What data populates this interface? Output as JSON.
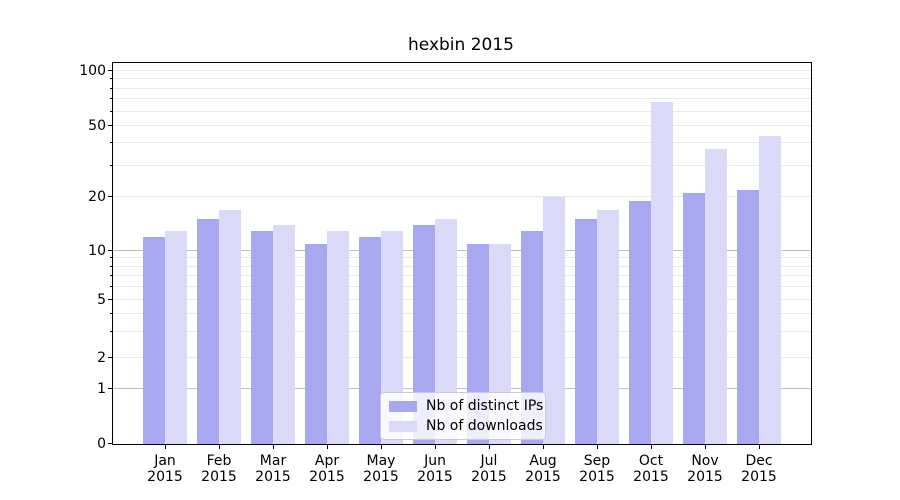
{
  "title": "hexbin 2015",
  "legend": {
    "items": [
      {
        "label": "Nb of distinct IPs",
        "color": "#a8a8f0"
      },
      {
        "label": "Nb of downloads",
        "color": "#dadaf8"
      }
    ]
  },
  "y_axis": {
    "ticks": [
      {
        "value": 100,
        "label": "100"
      },
      {
        "value": 50,
        "label": "50"
      },
      {
        "value": 20,
        "label": "20"
      },
      {
        "value": 10,
        "label": "10"
      },
      {
        "value": 5,
        "label": "5"
      },
      {
        "value": 2,
        "label": "2"
      },
      {
        "value": 1,
        "label": "1"
      },
      {
        "value": 0,
        "label": "0"
      }
    ]
  },
  "x_axis": {
    "ticks": [
      {
        "month": "Jan",
        "year": "2015"
      },
      {
        "month": "Feb",
        "year": "2015"
      },
      {
        "month": "Mar",
        "year": "2015"
      },
      {
        "month": "Apr",
        "year": "2015"
      },
      {
        "month": "May",
        "year": "2015"
      },
      {
        "month": "Jun",
        "year": "2015"
      },
      {
        "month": "Jul",
        "year": "2015"
      },
      {
        "month": "Aug",
        "year": "2015"
      },
      {
        "month": "Sep",
        "year": "2015"
      },
      {
        "month": "Oct",
        "year": "2015"
      },
      {
        "month": "Nov",
        "year": "2015"
      },
      {
        "month": "Dec",
        "year": "2015"
      }
    ]
  },
  "chart_data": {
    "type": "bar",
    "title": "hexbin 2015",
    "categories": [
      "Jan 2015",
      "Feb 2015",
      "Mar 2015",
      "Apr 2015",
      "May 2015",
      "Jun 2015",
      "Jul 2015",
      "Aug 2015",
      "Sep 2015",
      "Oct 2015",
      "Nov 2015",
      "Dec 2015"
    ],
    "series": [
      {
        "name": "Nb of distinct IPs",
        "color": "#a8a8f0",
        "values": [
          12,
          15,
          13,
          11,
          12,
          14,
          11,
          13,
          15,
          19,
          21,
          22
        ]
      },
      {
        "name": "Nb of downloads",
        "color": "#dadaf8",
        "values": [
          13,
          17,
          14,
          13,
          13,
          15,
          11,
          20,
          17,
          68,
          37,
          44
        ]
      }
    ],
    "xlabel": "",
    "ylabel": "",
    "yscale": "symlog",
    "y_ticks": [
      0,
      1,
      2,
      5,
      10,
      20,
      50,
      100
    ],
    "ylim": [
      0,
      110
    ],
    "grid": true,
    "legend_position": "lower center"
  }
}
